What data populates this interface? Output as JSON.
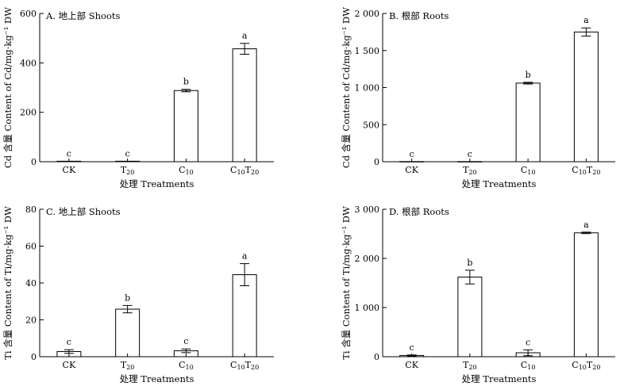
{
  "x_axis_title": "处理 Treatments",
  "chart_data": [
    {
      "type": "bar",
      "panel_title": "A. 地上部 Shoots",
      "ylabel": "Cd 含量 Content of Cd/mg·kg⁻¹ DW",
      "categories": [
        {
          "base": "CK",
          "sub1": "",
          "mid": "",
          "sub2": ""
        },
        {
          "base": "T",
          "sub1": "20",
          "mid": "",
          "sub2": ""
        },
        {
          "base": "C",
          "sub1": "10",
          "mid": "",
          "sub2": ""
        },
        {
          "base": "C",
          "sub1": "10",
          "mid": "T",
          "sub2": "20"
        }
      ],
      "values": [
        2,
        2,
        288,
        457
      ],
      "errors": [
        0,
        0,
        5,
        22
      ],
      "letters": [
        "c",
        "c",
        "b",
        "a"
      ],
      "ylim": [
        0,
        600
      ],
      "yticks": [
        0,
        200,
        400,
        600
      ],
      "ytick_labels": [
        "0",
        "200",
        "400",
        "600"
      ]
    },
    {
      "type": "bar",
      "panel_title": "B. 根部 Roots",
      "ylabel": "Cd 含量 Content of Cd/mg·kg⁻¹ DW",
      "categories": [
        {
          "base": "CK",
          "sub1": "",
          "mid": "",
          "sub2": ""
        },
        {
          "base": "T",
          "sub1": "20",
          "mid": "",
          "sub2": ""
        },
        {
          "base": "C",
          "sub1": "10",
          "mid": "",
          "sub2": ""
        },
        {
          "base": "C",
          "sub1": "10",
          "mid": "T",
          "sub2": "20"
        }
      ],
      "values": [
        2,
        2,
        1060,
        1750
      ],
      "errors": [
        0,
        0,
        12,
        55
      ],
      "letters": [
        "c",
        "c",
        "b",
        "a"
      ],
      "ylim": [
        0,
        2000
      ],
      "yticks": [
        0,
        500,
        1000,
        1500,
        2000
      ],
      "ytick_labels": [
        "0",
        "500",
        "1 000",
        "1 500",
        "2 000"
      ]
    },
    {
      "type": "bar",
      "panel_title": "C. 地上部 Shoots",
      "ylabel": "Ti 含量 Content of Ti/mg·kg⁻¹ DW",
      "categories": [
        {
          "base": "CK",
          "sub1": "",
          "mid": "",
          "sub2": ""
        },
        {
          "base": "T",
          "sub1": "20",
          "mid": "",
          "sub2": ""
        },
        {
          "base": "C",
          "sub1": "10",
          "mid": "",
          "sub2": ""
        },
        {
          "base": "C",
          "sub1": "10",
          "mid": "T",
          "sub2": "20"
        }
      ],
      "values": [
        2.8,
        25.8,
        3.2,
        44.5
      ],
      "errors": [
        1.0,
        2.0,
        1.0,
        6.0
      ],
      "letters": [
        "c",
        "b",
        "c",
        "a"
      ],
      "ylim": [
        0,
        80
      ],
      "yticks": [
        0,
        20,
        40,
        60,
        80
      ],
      "ytick_labels": [
        "0",
        "20",
        "40",
        "60",
        "80"
      ]
    },
    {
      "type": "bar",
      "panel_title": "D. 根部 Roots",
      "ylabel": "Ti 含量 Content of Ti/mg·kg⁻¹ DW",
      "categories": [
        {
          "base": "CK",
          "sub1": "",
          "mid": "",
          "sub2": ""
        },
        {
          "base": "T",
          "sub1": "20",
          "mid": "",
          "sub2": ""
        },
        {
          "base": "C",
          "sub1": "10",
          "mid": "",
          "sub2": ""
        },
        {
          "base": "C",
          "sub1": "10",
          "mid": "T",
          "sub2": "20"
        }
      ],
      "values": [
        25,
        1620,
        80,
        2520
      ],
      "errors": [
        10,
        140,
        60,
        15
      ],
      "letters": [
        "c",
        "b",
        "c",
        "a"
      ],
      "ylim": [
        0,
        3000
      ],
      "yticks": [
        0,
        1000,
        2000,
        3000
      ],
      "ytick_labels": [
        "0",
        "1 000",
        "2 000",
        "3 000"
      ]
    }
  ]
}
